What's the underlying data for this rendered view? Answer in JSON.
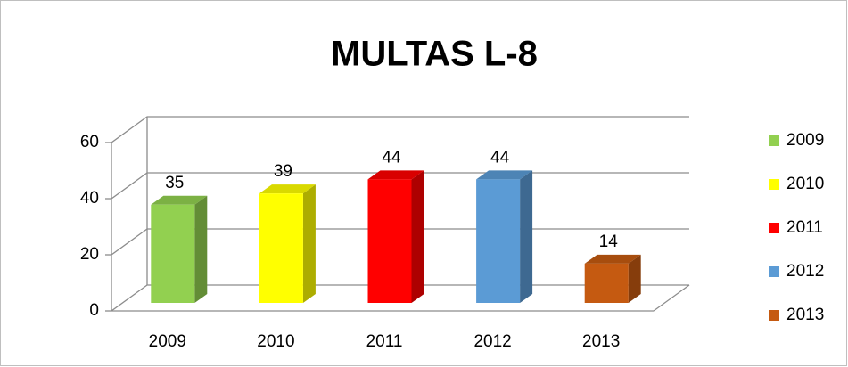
{
  "chart_data": {
    "type": "bar3d",
    "title": "MULTAS L-8",
    "categories": [
      "2009",
      "2010",
      "2011",
      "2012",
      "2013"
    ],
    "values": [
      35,
      39,
      44,
      44,
      14
    ],
    "colors": [
      "#92d050",
      "#ffff00",
      "#ff0000",
      "#5b9bd5",
      "#c55a11"
    ],
    "ylim": [
      0,
      60
    ],
    "yticks": [
      0,
      20,
      40,
      60
    ],
    "grid": true,
    "legend": "right"
  }
}
